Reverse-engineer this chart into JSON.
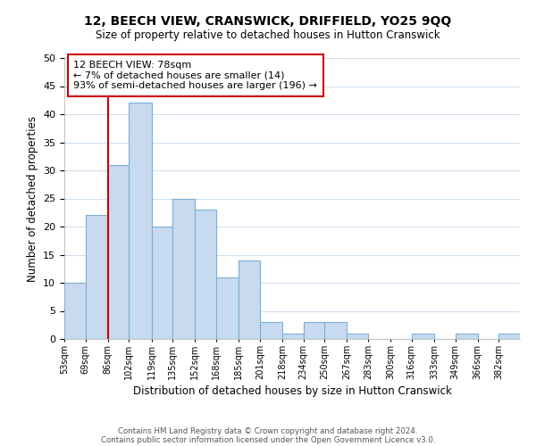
{
  "title": "12, BEECH VIEW, CRANSWICK, DRIFFIELD, YO25 9QQ",
  "subtitle": "Size of property relative to detached houses in Hutton Cranswick",
  "xlabel": "Distribution of detached houses by size in Hutton Cranswick",
  "ylabel": "Number of detached properties",
  "bin_labels": [
    "53sqm",
    "69sqm",
    "86sqm",
    "102sqm",
    "119sqm",
    "135sqm",
    "152sqm",
    "168sqm",
    "185sqm",
    "201sqm",
    "218sqm",
    "234sqm",
    "250sqm",
    "267sqm",
    "283sqm",
    "300sqm",
    "316sqm",
    "333sqm",
    "349sqm",
    "366sqm",
    "382sqm"
  ],
  "bar_values": [
    10,
    22,
    31,
    42,
    20,
    25,
    23,
    11,
    14,
    3,
    1,
    3,
    3,
    1,
    0,
    0,
    1,
    0,
    1,
    0,
    1
  ],
  "bar_color": "#c8daf0",
  "bar_edge_color": "#7bafd4",
  "grid_color": "#d0dff0",
  "reference_line_color": "#cc0000",
  "annotation_title": "12 BEECH VIEW: 78sqm",
  "annotation_line1": "← 7% of detached houses are smaller (14)",
  "annotation_line2": "93% of semi-detached houses are larger (196) →",
  "annotation_box_color": "#ffffff",
  "annotation_box_edge_color": "#cc0000",
  "ylim": [
    0,
    50
  ],
  "yticks": [
    0,
    5,
    10,
    15,
    20,
    25,
    30,
    35,
    40,
    45,
    50
  ],
  "footer_line1": "Contains HM Land Registry data © Crown copyright and database right 2024.",
  "footer_line2": "Contains public sector information licensed under the Open Government Licence v3.0.",
  "bin_edges": [
    53,
    69,
    86,
    102,
    119,
    135,
    152,
    168,
    185,
    201,
    218,
    234,
    250,
    267,
    283,
    300,
    316,
    333,
    349,
    366,
    382,
    398
  ]
}
